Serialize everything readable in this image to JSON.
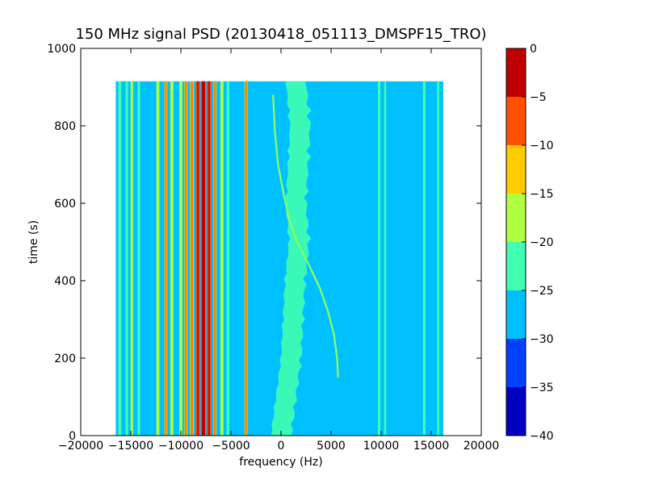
{
  "chart_data": {
    "type": "heatmap",
    "title": "150 MHz signal PSD (20130418_051113_DMSPF15_TRO)",
    "xlabel": "frequency (Hz)",
    "ylabel": "time (s)",
    "xlim": [
      -20000,
      20000
    ],
    "ylim": [
      0,
      1000
    ],
    "x_ticks": [
      -20000,
      -15000,
      -10000,
      -5000,
      0,
      5000,
      10000,
      15000,
      20000
    ],
    "x_tick_labels": [
      "−20000",
      "−15000",
      "−10000",
      "−5000",
      "0",
      "5000",
      "10000",
      "15000",
      "20000"
    ],
    "y_ticks": [
      0,
      200,
      400,
      600,
      800,
      1000
    ],
    "y_tick_labels": [
      "0",
      "200",
      "400",
      "600",
      "800",
      "1000"
    ],
    "data_extent": {
      "x": [
        -16500,
        16200
      ],
      "y": [
        0,
        915
      ]
    },
    "background_level": -27.5,
    "colorbar": {
      "levels": [
        -40,
        -35,
        -30,
        -25,
        -20,
        -15,
        -10,
        -5,
        0
      ],
      "tick_labels": [
        "−40",
        "−35",
        "−30",
        "−25",
        "−20",
        "−15",
        "−10",
        "−5",
        "0"
      ],
      "colors": [
        "#0000c0",
        "#0040ff",
        "#00c0ff",
        "#40ffb0",
        "#b0ff40",
        "#ffcc00",
        "#ff5000",
        "#c00000"
      ]
    },
    "bands": [
      {
        "x": -16100,
        "width": 300,
        "level": -22.5
      },
      {
        "x": -15400,
        "width": 250,
        "level": -22.5
      },
      {
        "x": -14900,
        "width": 250,
        "level": -17.5
      },
      {
        "x": -14200,
        "width": 250,
        "level": -22.5
      },
      {
        "x": -12300,
        "width": 300,
        "level": -17.5
      },
      {
        "x": -11500,
        "width": 300,
        "level": -12.5
      },
      {
        "x": -10900,
        "width": 300,
        "level": -17.5
      },
      {
        "x": -10000,
        "width": 300,
        "level": -17.5
      },
      {
        "x": -9500,
        "width": 300,
        "level": -12.5
      },
      {
        "x": -8900,
        "width": 350,
        "level": -12.5
      },
      {
        "x": -8300,
        "width": 450,
        "level": -7.5
      },
      {
        "x": -7750,
        "width": 350,
        "level": -2.5
      },
      {
        "x": -7200,
        "width": 450,
        "level": -7.5
      },
      {
        "x": -6600,
        "width": 300,
        "level": -12.5
      },
      {
        "x": -5900,
        "width": 300,
        "level": -17.5
      },
      {
        "x": -5300,
        "width": 250,
        "level": -22.5
      },
      {
        "x": -3500,
        "width": 300,
        "level": -12.5
      },
      {
        "x": 9800,
        "width": 250,
        "level": -22.5
      },
      {
        "x": 10400,
        "width": 200,
        "level": -22.5
      },
      {
        "x": 14300,
        "width": 250,
        "level": -22.5
      },
      {
        "x": 15700,
        "width": 200,
        "level": -22.5
      }
    ],
    "noise_band": {
      "level": -22.5,
      "points": [
        [
          0,
          0
        ],
        [
          200,
          1000
        ],
        [
          400,
          1400
        ],
        [
          500,
          1800
        ],
        [
          600,
          1500
        ],
        [
          700,
          1700
        ],
        [
          800,
          1900
        ],
        [
          915,
          1500
        ]
      ],
      "half_width": 1000
    },
    "doppler_trace": {
      "level": -17.5,
      "points": [
        [
          150,
          5700
        ],
        [
          200,
          5600
        ],
        [
          260,
          5300
        ],
        [
          320,
          4700
        ],
        [
          380,
          3900
        ],
        [
          440,
          2800
        ],
        [
          500,
          1600
        ],
        [
          560,
          800
        ],
        [
          620,
          300
        ],
        [
          700,
          -300
        ],
        [
          780,
          -600
        ],
        [
          880,
          -800
        ]
      ]
    }
  }
}
